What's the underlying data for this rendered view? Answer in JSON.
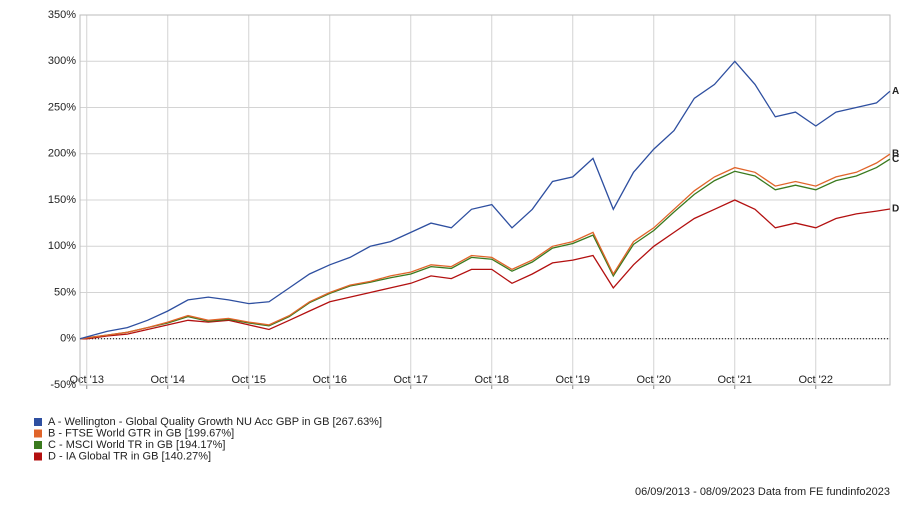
{
  "chart_data": {
    "type": "line",
    "x": [
      "Sep '13",
      "Oct '13",
      "Jan '14",
      "Apr '14",
      "Jul '14",
      "Oct '14",
      "Jan '15",
      "Apr '15",
      "Jul '15",
      "Oct '15",
      "Jan '16",
      "Apr '16",
      "Jul '16",
      "Oct '16",
      "Jan '17",
      "Apr '17",
      "Jul '17",
      "Oct '17",
      "Jan '18",
      "Apr '18",
      "Jul '18",
      "Oct '18",
      "Jan '19",
      "Apr '19",
      "Jul '19",
      "Oct '19",
      "Jan '20",
      "Apr '20",
      "Jul '20",
      "Oct '20",
      "Jan '21",
      "Apr '21",
      "Jul '21",
      "Oct '21",
      "Jan '22",
      "Apr '22",
      "Jul '22",
      "Oct '22",
      "Jan '23",
      "Apr '23",
      "Jul '23",
      "Sep '23"
    ],
    "xticks": [
      "Oct '13",
      "Oct '14",
      "Oct '15",
      "Oct '16",
      "Oct '17",
      "Oct '18",
      "Oct '19",
      "Oct '20",
      "Oct '21",
      "Oct '22"
    ],
    "ylim": [
      -50,
      350
    ],
    "yticks": [
      {
        "value": -50,
        "label": "-50%"
      },
      {
        "value": 0,
        "label": "0%"
      },
      {
        "value": 50,
        "label": "50%"
      },
      {
        "value": 100,
        "label": "100%"
      },
      {
        "value": 150,
        "label": "150%"
      },
      {
        "value": 200,
        "label": "200%"
      },
      {
        "value": 250,
        "label": "250%"
      },
      {
        "value": 300,
        "label": "300%"
      },
      {
        "value": 350,
        "label": "350%"
      }
    ],
    "grid": true,
    "series": [
      {
        "name": "A - Wellington - Global Quality Growth NU Acc GBP in GB [267.63%]",
        "end_label": "A",
        "color": "#2e4fa0",
        "values": [
          0,
          2,
          8,
          12,
          20,
          30,
          42,
          45,
          42,
          38,
          40,
          55,
          70,
          80,
          88,
          100,
          105,
          115,
          125,
          120,
          140,
          145,
          120,
          140,
          170,
          175,
          195,
          140,
          180,
          205,
          225,
          260,
          275,
          300,
          275,
          240,
          245,
          230,
          245,
          250,
          255,
          267.63
        ]
      },
      {
        "name": "B - FTSE World GTR in GB [199.67%]",
        "end_label": "B",
        "color": "#e0642a",
        "values": [
          0,
          1,
          4,
          7,
          12,
          18,
          25,
          20,
          22,
          18,
          15,
          25,
          40,
          50,
          58,
          62,
          68,
          72,
          80,
          78,
          90,
          88,
          75,
          85,
          100,
          105,
          115,
          70,
          105,
          120,
          140,
          160,
          175,
          185,
          180,
          165,
          170,
          165,
          175,
          180,
          190,
          199.67
        ]
      },
      {
        "name": "C - MSCI World TR in GB [194.17%]",
        "end_label": "C",
        "color": "#3a7a1e",
        "values": [
          0,
          1,
          4,
          7,
          12,
          17,
          24,
          19,
          21,
          17,
          14,
          24,
          39,
          49,
          57,
          61,
          66,
          70,
          78,
          76,
          88,
          86,
          73,
          83,
          98,
          103,
          112,
          68,
          102,
          117,
          137,
          156,
          171,
          181,
          176,
          161,
          166,
          161,
          171,
          176,
          185,
          194.17
        ]
      },
      {
        "name": "D - IA Global TR in GB [140.27%]",
        "end_label": "D",
        "color": "#b31010",
        "values": [
          0,
          0,
          3,
          5,
          10,
          15,
          20,
          18,
          20,
          15,
          10,
          20,
          30,
          40,
          45,
          50,
          55,
          60,
          68,
          65,
          75,
          75,
          60,
          70,
          82,
          85,
          90,
          55,
          80,
          100,
          115,
          130,
          140,
          150,
          140,
          120,
          125,
          120,
          130,
          135,
          138,
          140.27
        ]
      }
    ],
    "footer": "06/09/2013 - 08/09/2023 Data from FE fundinfo2023"
  }
}
